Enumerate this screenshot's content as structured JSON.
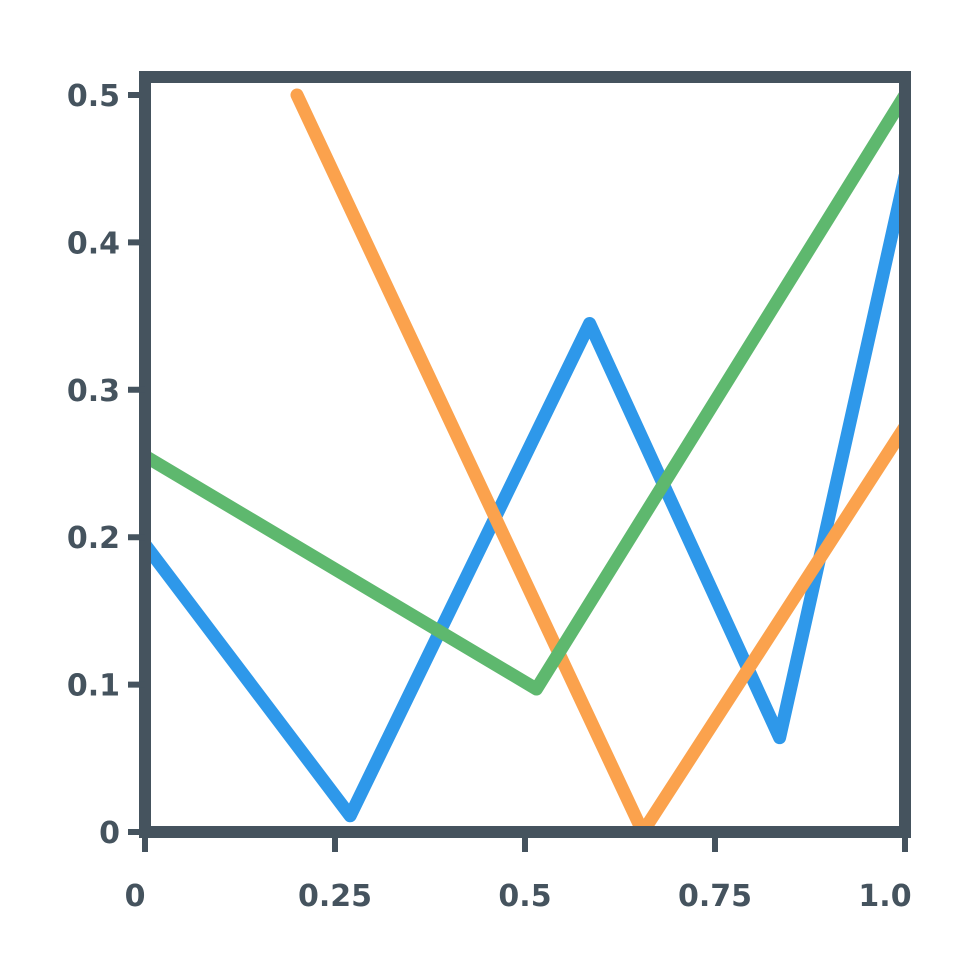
{
  "chart_data": {
    "type": "line",
    "title": "",
    "xlabel": "",
    "ylabel": "",
    "xlim": [
      0,
      1.0
    ],
    "ylim": [
      0,
      0.5
    ],
    "grid": false,
    "legend": "none",
    "x_ticks": [
      {
        "value": 0,
        "label": "0"
      },
      {
        "value": 0.25,
        "label": "0.25"
      },
      {
        "value": 0.5,
        "label": "0.5"
      },
      {
        "value": 0.75,
        "label": "0.75"
      },
      {
        "value": 1.0,
        "label": "1.0"
      }
    ],
    "y_ticks": [
      {
        "value": 0,
        "label": "0"
      },
      {
        "value": 0.1,
        "label": "0.1"
      },
      {
        "value": 0.2,
        "label": "0.2"
      },
      {
        "value": 0.3,
        "label": "0.3"
      },
      {
        "value": 0.4,
        "label": "0.4"
      },
      {
        "value": 0.5,
        "label": "0.5"
      }
    ],
    "series": [
      {
        "color": "#2e98ea",
        "points": [
          [
            0,
            0.195
          ],
          [
            0.27,
            0.011
          ],
          [
            0.585,
            0.345
          ],
          [
            0.835,
            0.064
          ],
          [
            1.0,
            0.445
          ]
        ]
      },
      {
        "color": "#fba24d",
        "points": [
          [
            0.2,
            0.5
          ],
          [
            0.655,
            0.0
          ],
          [
            1.0,
            0.275
          ]
        ]
      },
      {
        "color": "#5eb86e",
        "points": [
          [
            0,
            0.255
          ],
          [
            0.515,
            0.097
          ],
          [
            1.0,
            0.5
          ]
        ]
      }
    ],
    "colors": {
      "axis": "#45535e",
      "text": "#45535e"
    }
  }
}
